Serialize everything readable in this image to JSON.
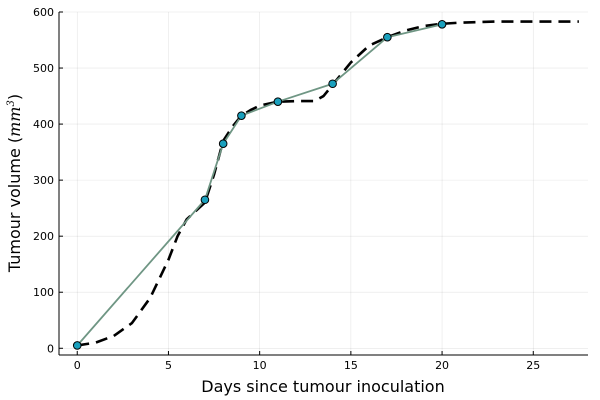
{
  "chart_data": {
    "type": "line",
    "xlabel": "Days since tumour inoculation",
    "ylabel": {
      "prefix": "Tumour volume (",
      "unit": "mm",
      "exponent": "3",
      "suffix": ")"
    },
    "xlim": [
      -1,
      28
    ],
    "ylim": [
      -12,
      600
    ],
    "xticks": [
      0,
      5,
      10,
      15,
      20,
      25
    ],
    "yticks": [
      0,
      100,
      200,
      300,
      400,
      500,
      600
    ],
    "grid": true,
    "legend": "none",
    "series": [
      {
        "style": "dashed",
        "color": "#000000",
        "x": [
          0,
          1,
          2,
          3,
          4,
          5,
          5.5,
          6,
          6.5,
          7,
          7.5,
          8,
          8.5,
          9,
          9.5,
          10,
          11,
          12,
          13,
          13.5,
          14,
          15,
          16,
          17,
          18,
          19,
          20,
          21,
          22,
          23,
          24,
          25,
          26,
          27.5
        ],
        "y": [
          5,
          10,
          22,
          45,
          90,
          158,
          200,
          230,
          245,
          260,
          310,
          370,
          395,
          415,
          425,
          433,
          440,
          441,
          441,
          450,
          470,
          510,
          540,
          555,
          567,
          575,
          579,
          581,
          582,
          583,
          583,
          583,
          583,
          583
        ]
      },
      {
        "style": "solid-with-markers",
        "color": "#6f9684",
        "marker_color": "#1aa0bd",
        "x": [
          0,
          7,
          8,
          9,
          11,
          14,
          17,
          20
        ],
        "y": [
          5,
          265,
          365,
          415,
          440,
          472,
          555,
          578
        ]
      }
    ]
  }
}
